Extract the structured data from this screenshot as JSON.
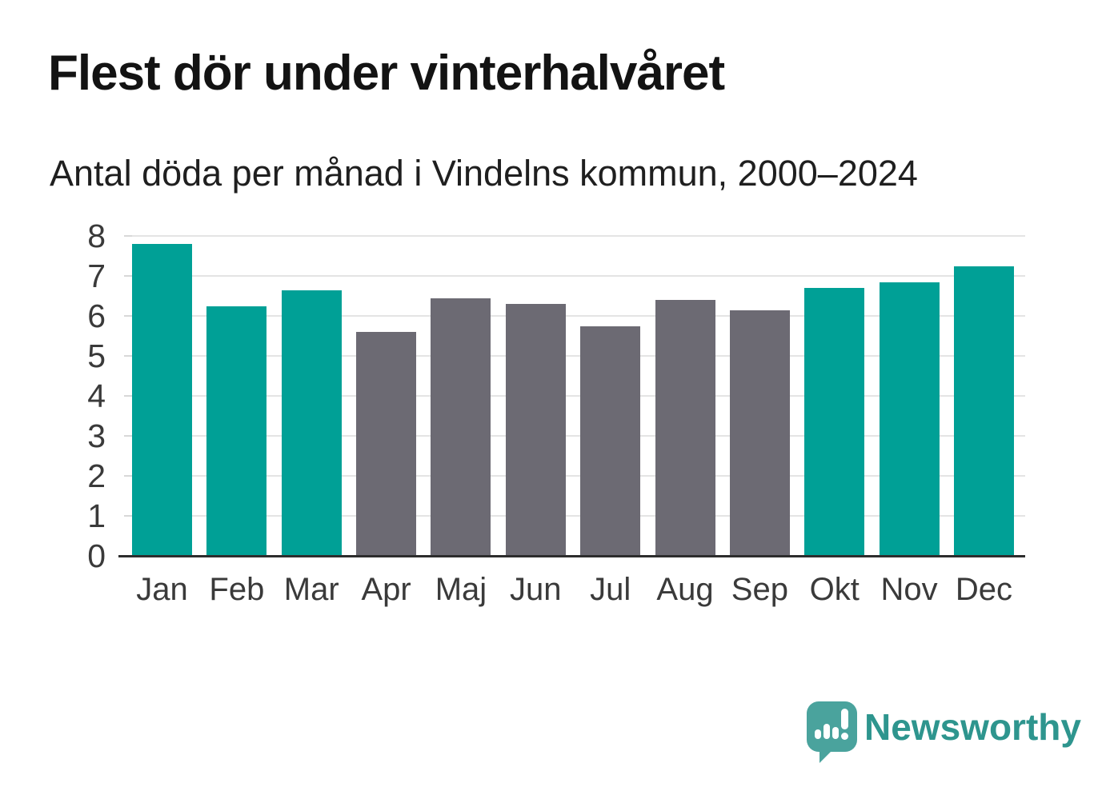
{
  "title": "Flest dör under vinterhalvåret",
  "subtitle": "Antal döda per månad i Vindelns kommun, 2000–2024",
  "chart_data": {
    "type": "bar",
    "title": "Flest dör under vinterhalvåret",
    "subtitle": "Antal döda per månad i Vindelns kommun, 2000–2024",
    "categories": [
      "Jan",
      "Feb",
      "Mar",
      "Apr",
      "Maj",
      "Jun",
      "Jul",
      "Aug",
      "Sep",
      "Okt",
      "Nov",
      "Dec"
    ],
    "values": [
      7.8,
      6.25,
      6.65,
      5.6,
      6.45,
      6.3,
      5.75,
      6.4,
      6.15,
      6.7,
      6.85,
      7.25
    ],
    "highlight_months": [
      "Jan",
      "Feb",
      "Mar",
      "Okt",
      "Nov",
      "Dec"
    ],
    "palette": {
      "highlight": "#00a096",
      "base": "#6c6a73"
    },
    "xlabel": "",
    "ylabel": "",
    "ylim": [
      0,
      8
    ],
    "yticks": [
      0,
      1,
      2,
      3,
      4,
      5,
      6,
      7,
      8
    ],
    "grid": true,
    "legend": false
  },
  "footer": {
    "brand": "Newsworthy",
    "logo_icon": "bar-chart-speech-bubble-icon",
    "brand_color": "#2e958e",
    "icon_color": "#4aa39d"
  }
}
